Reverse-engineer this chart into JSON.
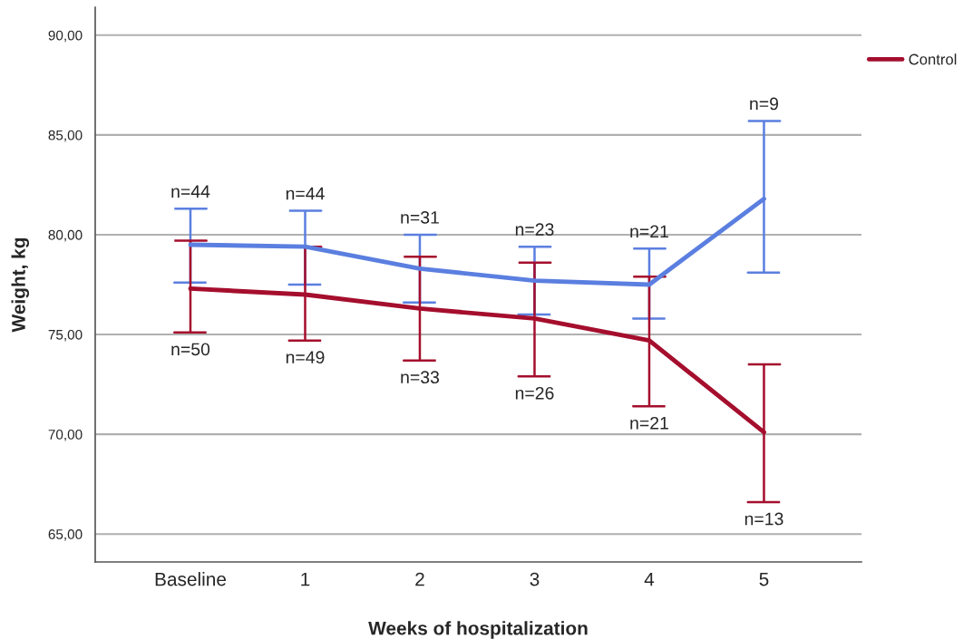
{
  "chart_data": {
    "type": "line",
    "xlabel": "Weeks of hospitalization",
    "ylabel": "Weight, kg",
    "categories": [
      "Baseline",
      "1",
      "2",
      "3",
      "4",
      "5"
    ],
    "series": [
      {
        "color": "#5b7fe0",
        "values": [
          79.5,
          79.4,
          78.3,
          77.7,
          77.5,
          81.8
        ],
        "errors": [
          [
            77.6,
            81.3
          ],
          [
            77.5,
            81.2
          ],
          [
            76.6,
            80.0
          ],
          [
            76.0,
            79.4
          ],
          [
            75.8,
            79.3
          ],
          [
            78.1,
            85.7
          ]
        ]
      },
      {
        "name": "Control",
        "color": "#a50e2d",
        "values": [
          77.3,
          77.0,
          76.3,
          75.8,
          74.7,
          70.1
        ],
        "errors": [
          [
            75.1,
            79.7
          ],
          [
            74.7,
            79.4
          ],
          [
            73.7,
            78.9
          ],
          [
            72.9,
            78.6
          ],
          [
            71.4,
            77.9
          ],
          [
            66.6,
            73.5
          ]
        ]
      }
    ],
    "ylim": [
      63.6,
      91.4
    ],
    "yticks": [
      {
        "value": 65,
        "label": "65,00"
      },
      {
        "value": 70,
        "label": "70,00"
      },
      {
        "value": 75,
        "label": "75,00"
      },
      {
        "value": 80,
        "label": "80,00"
      },
      {
        "value": 85,
        "label": "85,00"
      },
      {
        "value": 90,
        "label": "90,00"
      }
    ],
    "grid": "y",
    "legend": "top right",
    "marker": "none",
    "line_style": "solid",
    "annotations": [
      {
        "text": "n=44",
        "x": "Baseline",
        "y": 81.3
      },
      {
        "text": "n=50",
        "x": "Baseline",
        "y": 75.1
      },
      {
        "text": "n=44",
        "x": "1",
        "y": 81.2
      },
      {
        "text": "n=49",
        "x": "1",
        "y": 74.7
      },
      {
        "text": "n=31",
        "x": "2",
        "y": 80.0
      },
      {
        "text": "n=33",
        "x": "2",
        "y": 73.7
      },
      {
        "text": "n=23",
        "x": "3",
        "y": 79.4
      },
      {
        "text": "n=26",
        "x": "3",
        "y": 72.9
      },
      {
        "text": "n=21",
        "x": "4",
        "y": 79.3
      },
      {
        "text": "n=21",
        "x": "4",
        "y": 71.4
      },
      {
        "text": "n=9",
        "x": "5",
        "y": 85.7
      },
      {
        "text": "n=13",
        "x": "5",
        "y": 66.6
      }
    ]
  }
}
